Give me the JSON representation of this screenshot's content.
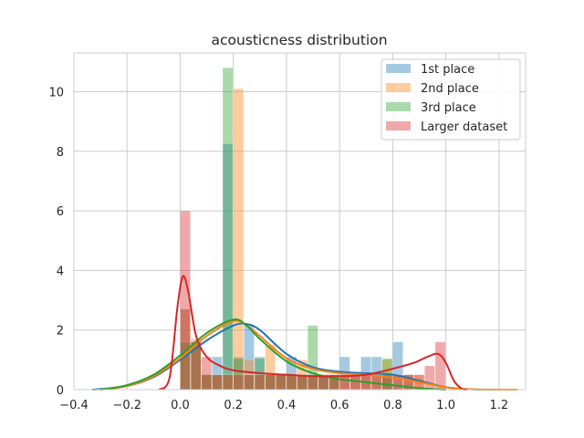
{
  "chart_data": {
    "type": "bar",
    "title": "acousticness distribution",
    "xlabel": "",
    "ylabel": "",
    "xlim": [
      -0.4,
      1.3
    ],
    "ylim": [
      0,
      11.3
    ],
    "xticks": [
      "−0.4",
      "−0.2",
      "0.0",
      "0.2",
      "0.4",
      "0.6",
      "0.8",
      "1.0",
      "1.2"
    ],
    "xtick_values": [
      -0.4,
      -0.2,
      0.0,
      0.2,
      0.4,
      0.6,
      0.8,
      1.0,
      1.2
    ],
    "yticks": [
      "0",
      "2",
      "4",
      "6",
      "8",
      "10"
    ],
    "ytick_values": [
      0,
      2,
      4,
      6,
      8,
      10
    ],
    "grid": true,
    "legend_position": "top-right",
    "series": [
      {
        "name": "1st place",
        "color": "#1f77b4",
        "histogram": [
          [
            0.0,
            0.04,
            2.7
          ],
          [
            0.04,
            0.08,
            1.6
          ],
          [
            0.08,
            0.12,
            0.5
          ],
          [
            0.12,
            0.16,
            1.1
          ],
          [
            0.16,
            0.2,
            8.25
          ],
          [
            0.2,
            0.24,
            1.1
          ],
          [
            0.24,
            0.28,
            2.15
          ],
          [
            0.28,
            0.32,
            1.1
          ],
          [
            0.32,
            0.36,
            0.5
          ],
          [
            0.36,
            0.4,
            0.5
          ],
          [
            0.4,
            0.44,
            1.1
          ],
          [
            0.44,
            0.48,
            0.5
          ],
          [
            0.48,
            0.52,
            0.5
          ],
          [
            0.52,
            0.56,
            0.5
          ],
          [
            0.56,
            0.6,
            0.5
          ],
          [
            0.6,
            0.64,
            1.1
          ],
          [
            0.64,
            0.68,
            0.5
          ],
          [
            0.68,
            0.72,
            1.1
          ],
          [
            0.72,
            0.76,
            1.1
          ],
          [
            0.76,
            0.8,
            0.5
          ],
          [
            0.8,
            0.84,
            1.6
          ],
          [
            0.84,
            0.88,
            0.5
          ]
        ],
        "kde": [
          [
            -0.33,
            0.0
          ],
          [
            -0.2,
            0.12
          ],
          [
            -0.1,
            0.42
          ],
          [
            0.0,
            1.0
          ],
          [
            0.1,
            1.65
          ],
          [
            0.2,
            2.15
          ],
          [
            0.25,
            2.2
          ],
          [
            0.3,
            2.0
          ],
          [
            0.4,
            1.2
          ],
          [
            0.5,
            0.75
          ],
          [
            0.6,
            0.6
          ],
          [
            0.7,
            0.55
          ],
          [
            0.8,
            0.5
          ],
          [
            0.9,
            0.3
          ],
          [
            1.0,
            0.08
          ],
          [
            1.1,
            0.01
          ],
          [
            1.2,
            0.0
          ]
        ]
      },
      {
        "name": "2nd place",
        "color": "#ff7f0e",
        "histogram": [
          [
            0.0,
            0.04,
            2.7
          ],
          [
            0.04,
            0.08,
            1.7
          ],
          [
            0.08,
            0.12,
            0.5
          ],
          [
            0.12,
            0.16,
            0.5
          ],
          [
            0.16,
            0.2,
            0.5
          ],
          [
            0.2,
            0.24,
            10.1
          ],
          [
            0.24,
            0.28,
            1.0
          ],
          [
            0.28,
            0.32,
            0.5
          ],
          [
            0.32,
            0.36,
            1.5
          ],
          [
            0.36,
            0.4,
            0.5
          ],
          [
            0.4,
            0.44,
            0.5
          ],
          [
            0.44,
            0.48,
            1.0
          ],
          [
            0.48,
            0.52,
            0.5
          ],
          [
            0.52,
            0.56,
            0.5
          ],
          [
            0.56,
            0.6,
            0.5
          ],
          [
            0.6,
            0.64,
            0.5
          ],
          [
            0.64,
            0.68,
            0.5
          ],
          [
            0.68,
            0.72,
            0.5
          ],
          [
            0.72,
            0.76,
            0.5
          ],
          [
            0.76,
            0.8,
            1.0
          ],
          [
            0.8,
            0.84,
            0.5
          ],
          [
            0.84,
            0.88,
            0.5
          ],
          [
            0.88,
            0.92,
            0.5
          ]
        ],
        "kde": [
          [
            -0.3,
            0.0
          ],
          [
            -0.2,
            0.12
          ],
          [
            -0.1,
            0.45
          ],
          [
            0.0,
            1.05
          ],
          [
            0.1,
            1.8
          ],
          [
            0.2,
            2.3
          ],
          [
            0.25,
            2.15
          ],
          [
            0.3,
            1.8
          ],
          [
            0.4,
            1.05
          ],
          [
            0.5,
            0.7
          ],
          [
            0.6,
            0.55
          ],
          [
            0.7,
            0.5
          ],
          [
            0.8,
            0.4
          ],
          [
            0.9,
            0.25
          ],
          [
            1.0,
            0.08
          ],
          [
            1.1,
            0.01
          ],
          [
            1.27,
            0.0
          ]
        ]
      },
      {
        "name": "3rd place",
        "color": "#2ca02c",
        "histogram": [
          [
            0.0,
            0.04,
            1.6
          ],
          [
            0.04,
            0.08,
            1.6
          ],
          [
            0.08,
            0.12,
            0.5
          ],
          [
            0.12,
            0.16,
            0.5
          ],
          [
            0.16,
            0.2,
            10.8
          ],
          [
            0.2,
            0.24,
            1.05
          ],
          [
            0.24,
            0.28,
            0.5
          ],
          [
            0.28,
            0.32,
            1.05
          ],
          [
            0.32,
            0.36,
            0.5
          ],
          [
            0.36,
            0.4,
            0.5
          ],
          [
            0.4,
            0.44,
            0.5
          ],
          [
            0.44,
            0.48,
            0.5
          ],
          [
            0.48,
            0.52,
            2.15
          ],
          [
            0.52,
            0.56,
            0.5
          ],
          [
            0.56,
            0.6,
            0.5
          ],
          [
            0.76,
            0.8,
            1.05
          ]
        ],
        "kde": [
          [
            -0.3,
            0.0
          ],
          [
            -0.2,
            0.15
          ],
          [
            -0.1,
            0.5
          ],
          [
            0.0,
            1.15
          ],
          [
            0.1,
            1.9
          ],
          [
            0.2,
            2.35
          ],
          [
            0.25,
            2.15
          ],
          [
            0.3,
            1.7
          ],
          [
            0.4,
            0.95
          ],
          [
            0.5,
            0.55
          ],
          [
            0.6,
            0.35
          ],
          [
            0.7,
            0.25
          ],
          [
            0.8,
            0.15
          ],
          [
            0.9,
            0.05
          ],
          [
            1.0,
            0.0
          ]
        ]
      },
      {
        "name": "Larger dataset",
        "color": "#d62728",
        "histogram": [
          [
            0.0,
            0.04,
            6.0
          ],
          [
            0.04,
            0.08,
            1.6
          ],
          [
            0.08,
            0.12,
            1.1
          ],
          [
            0.12,
            0.16,
            0.5
          ],
          [
            0.16,
            0.2,
            0.5
          ],
          [
            0.2,
            0.24,
            0.5
          ],
          [
            0.24,
            0.28,
            0.5
          ],
          [
            0.28,
            0.32,
            0.5
          ],
          [
            0.32,
            0.36,
            0.5
          ],
          [
            0.36,
            0.4,
            0.5
          ],
          [
            0.4,
            0.44,
            0.5
          ],
          [
            0.44,
            0.48,
            0.5
          ],
          [
            0.48,
            0.52,
            0.5
          ],
          [
            0.52,
            0.56,
            0.5
          ],
          [
            0.56,
            0.6,
            0.5
          ],
          [
            0.6,
            0.64,
            0.5
          ],
          [
            0.64,
            0.68,
            0.5
          ],
          [
            0.68,
            0.72,
            0.5
          ],
          [
            0.72,
            0.76,
            0.5
          ],
          [
            0.76,
            0.8,
            0.5
          ],
          [
            0.8,
            0.84,
            0.5
          ],
          [
            0.84,
            0.88,
            0.5
          ],
          [
            0.88,
            0.92,
            0.5
          ],
          [
            0.92,
            0.96,
            0.8
          ],
          [
            0.96,
            1.0,
            1.6
          ]
        ],
        "kde": [
          [
            -0.08,
            0.0
          ],
          [
            -0.04,
            0.4
          ],
          [
            -0.01,
            2.8
          ],
          [
            0.01,
            3.8
          ],
          [
            0.03,
            3.3
          ],
          [
            0.06,
            1.8
          ],
          [
            0.1,
            1.1
          ],
          [
            0.15,
            0.8
          ],
          [
            0.2,
            0.65
          ],
          [
            0.3,
            0.55
          ],
          [
            0.4,
            0.5
          ],
          [
            0.5,
            0.45
          ],
          [
            0.6,
            0.45
          ],
          [
            0.7,
            0.5
          ],
          [
            0.8,
            0.7
          ],
          [
            0.88,
            0.9
          ],
          [
            0.93,
            1.1
          ],
          [
            0.97,
            1.2
          ],
          [
            1.0,
            0.9
          ],
          [
            1.03,
            0.3
          ],
          [
            1.06,
            0.03
          ],
          [
            1.08,
            0.0
          ]
        ]
      }
    ]
  }
}
